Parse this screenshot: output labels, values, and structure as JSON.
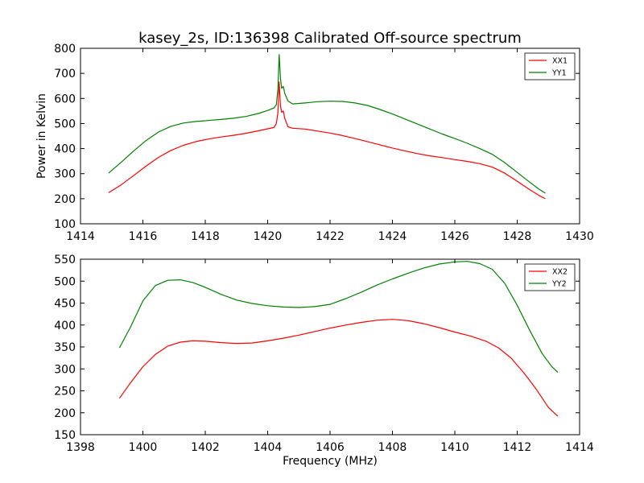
{
  "chart_data": [
    {
      "type": "line",
      "title": "kasey_2s, ID:136398 Calibrated Off-source spectrum",
      "xlabel": "",
      "ylabel": "Power in Kelvin",
      "xlim": [
        1414,
        1430
      ],
      "ylim": [
        100,
        800
      ],
      "xticks": [
        1414,
        1416,
        1418,
        1420,
        1422,
        1424,
        1426,
        1428,
        1430
      ],
      "yticks": [
        100,
        200,
        300,
        400,
        500,
        600,
        700,
        800
      ],
      "legend_position": "top-right",
      "grid": false,
      "series": [
        {
          "name": "XX1",
          "color": "#ff0000",
          "points": [
            [
              1414.9,
              224
            ],
            [
              1415.3,
              255
            ],
            [
              1415.7,
              292
            ],
            [
              1416.1,
              330
            ],
            [
              1416.5,
              365
            ],
            [
              1416.9,
              393
            ],
            [
              1417.3,
              413
            ],
            [
              1417.7,
              428
            ],
            [
              1418.1,
              438
            ],
            [
              1418.5,
              446
            ],
            [
              1418.9,
              453
            ],
            [
              1419.3,
              461
            ],
            [
              1419.7,
              471
            ],
            [
              1420.0,
              479
            ],
            [
              1420.2,
              484
            ],
            [
              1420.28,
              500
            ],
            [
              1420.33,
              545
            ],
            [
              1420.37,
              665
            ],
            [
              1420.41,
              570
            ],
            [
              1420.45,
              545
            ],
            [
              1420.5,
              550
            ],
            [
              1420.55,
              520
            ],
            [
              1420.65,
              487
            ],
            [
              1420.8,
              481
            ],
            [
              1421.2,
              478
            ],
            [
              1421.6,
              470
            ],
            [
              1422.0,
              462
            ],
            [
              1422.4,
              452
            ],
            [
              1422.8,
              440
            ],
            [
              1423.2,
              428
            ],
            [
              1423.6,
              415
            ],
            [
              1424.0,
              402
            ],
            [
              1424.4,
              391
            ],
            [
              1424.8,
              380
            ],
            [
              1425.2,
              371
            ],
            [
              1425.6,
              364
            ],
            [
              1426.0,
              356
            ],
            [
              1426.4,
              349
            ],
            [
              1426.8,
              340
            ],
            [
              1427.2,
              326
            ],
            [
              1427.6,
              302
            ],
            [
              1428.0,
              270
            ],
            [
              1428.4,
              236
            ],
            [
              1428.7,
              213
            ],
            [
              1428.9,
              200
            ]
          ]
        },
        {
          "name": "YY1",
          "color": "#008000",
          "points": [
            [
              1414.9,
              302
            ],
            [
              1415.3,
              345
            ],
            [
              1415.7,
              390
            ],
            [
              1416.1,
              432
            ],
            [
              1416.5,
              466
            ],
            [
              1416.9,
              489
            ],
            [
              1417.3,
              502
            ],
            [
              1417.7,
              508
            ],
            [
              1418.1,
              512
            ],
            [
              1418.5,
              516
            ],
            [
              1418.9,
              521
            ],
            [
              1419.3,
              528
            ],
            [
              1419.7,
              540
            ],
            [
              1420.0,
              552
            ],
            [
              1420.2,
              562
            ],
            [
              1420.28,
              575
            ],
            [
              1420.33,
              640
            ],
            [
              1420.37,
              775
            ],
            [
              1420.41,
              680
            ],
            [
              1420.45,
              640
            ],
            [
              1420.5,
              648
            ],
            [
              1420.55,
              620
            ],
            [
              1420.65,
              590
            ],
            [
              1420.8,
              578
            ],
            [
              1421.2,
              582
            ],
            [
              1421.6,
              587
            ],
            [
              1422.0,
              589
            ],
            [
              1422.4,
              588
            ],
            [
              1422.8,
              582
            ],
            [
              1423.2,
              572
            ],
            [
              1423.6,
              556
            ],
            [
              1424.0,
              538
            ],
            [
              1424.4,
              518
            ],
            [
              1424.8,
              498
            ],
            [
              1425.2,
              478
            ],
            [
              1425.6,
              458
            ],
            [
              1426.0,
              440
            ],
            [
              1426.4,
              421
            ],
            [
              1426.8,
              400
            ],
            [
              1427.2,
              377
            ],
            [
              1427.6,
              344
            ],
            [
              1428.0,
              305
            ],
            [
              1428.4,
              266
            ],
            [
              1428.7,
              238
            ],
            [
              1428.9,
              222
            ]
          ]
        }
      ]
    },
    {
      "type": "line",
      "title": "",
      "xlabel": "Frequency (MHz)",
      "ylabel": "",
      "xlim": [
        1398,
        1414
      ],
      "ylim": [
        150,
        550
      ],
      "xticks": [
        1398,
        1400,
        1402,
        1404,
        1406,
        1408,
        1410,
        1412,
        1414
      ],
      "yticks": [
        150,
        200,
        250,
        300,
        350,
        400,
        450,
        500,
        550
      ],
      "legend_position": "top-right",
      "grid": false,
      "series": [
        {
          "name": "XX2",
          "color": "#ff0000",
          "points": [
            [
              1399.25,
              233
            ],
            [
              1399.6,
              268
            ],
            [
              1400.0,
              305
            ],
            [
              1400.4,
              333
            ],
            [
              1400.8,
              352
            ],
            [
              1401.2,
              361
            ],
            [
              1401.6,
              364
            ],
            [
              1402.0,
              363
            ],
            [
              1402.5,
              360
            ],
            [
              1403.0,
              358
            ],
            [
              1403.5,
              359
            ],
            [
              1404.0,
              364
            ],
            [
              1404.5,
              370
            ],
            [
              1405.0,
              377
            ],
            [
              1405.5,
              385
            ],
            [
              1406.0,
              393
            ],
            [
              1406.5,
              400
            ],
            [
              1407.0,
              406
            ],
            [
              1407.5,
              411
            ],
            [
              1408.0,
              413
            ],
            [
              1408.5,
              410
            ],
            [
              1409.0,
              403
            ],
            [
              1409.5,
              394
            ],
            [
              1410.0,
              384
            ],
            [
              1410.5,
              375
            ],
            [
              1411.0,
              363
            ],
            [
              1411.4,
              348
            ],
            [
              1411.8,
              325
            ],
            [
              1412.2,
              292
            ],
            [
              1412.6,
              255
            ],
            [
              1413.0,
              212
            ],
            [
              1413.3,
              192
            ]
          ]
        },
        {
          "name": "YY2",
          "color": "#008000",
          "points": [
            [
              1399.25,
              348
            ],
            [
              1399.6,
              395
            ],
            [
              1400.0,
              455
            ],
            [
              1400.4,
              490
            ],
            [
              1400.8,
              502
            ],
            [
              1401.2,
              503
            ],
            [
              1401.6,
              497
            ],
            [
              1402.0,
              486
            ],
            [
              1402.5,
              470
            ],
            [
              1403.0,
              457
            ],
            [
              1403.5,
              449
            ],
            [
              1404.0,
              444
            ],
            [
              1404.5,
              441
            ],
            [
              1405.0,
              440
            ],
            [
              1405.5,
              442
            ],
            [
              1406.0,
              447
            ],
            [
              1406.5,
              460
            ],
            [
              1407.0,
              475
            ],
            [
              1407.5,
              491
            ],
            [
              1408.0,
              505
            ],
            [
              1408.5,
              518
            ],
            [
              1409.0,
              530
            ],
            [
              1409.5,
              539
            ],
            [
              1410.0,
              544
            ],
            [
              1410.4,
              545
            ],
            [
              1410.8,
              540
            ],
            [
              1411.2,
              527
            ],
            [
              1411.6,
              495
            ],
            [
              1412.0,
              445
            ],
            [
              1412.4,
              388
            ],
            [
              1412.8,
              335
            ],
            [
              1413.1,
              306
            ],
            [
              1413.3,
              292
            ]
          ]
        }
      ]
    }
  ]
}
